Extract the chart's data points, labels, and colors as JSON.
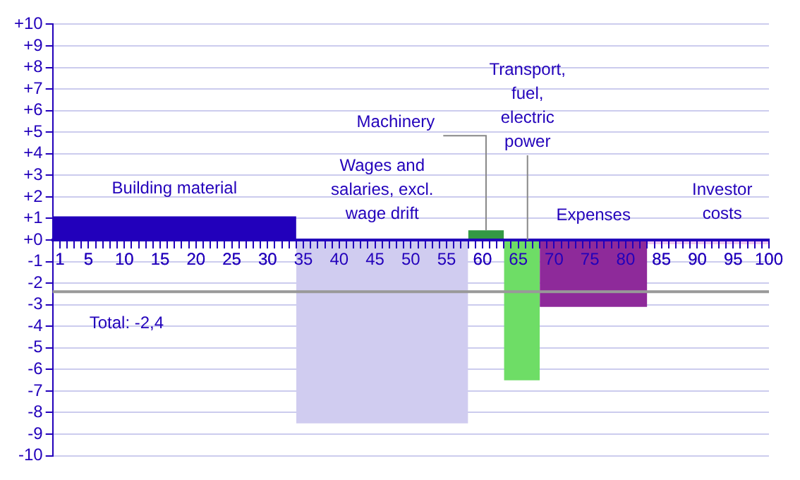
{
  "chart_data": {
    "type": "area",
    "legend": false,
    "grid": "y",
    "series": [
      {
        "name": "Building material",
        "color": "#2200bb",
        "x": [
          0,
          34
        ],
        "values": [
          1.1,
          1.1
        ]
      },
      {
        "name": "Wages and salaries, excl. wage drift",
        "color": "#d0ccf0",
        "x": [
          34,
          58
        ],
        "values": [
          -8.5,
          -8.5
        ]
      },
      {
        "name": "Machinery",
        "color": "#339944",
        "x": [
          58,
          63
        ],
        "values": [
          0.45,
          0.45
        ]
      },
      {
        "name": "Transport, fuel, electric power",
        "color": "#6edd66",
        "x": [
          63,
          68
        ],
        "values": [
          -6.5,
          -6.5
        ]
      },
      {
        "name": "Expenses",
        "color": "#8e2a9a",
        "x": [
          68,
          83
        ],
        "values": [
          -3.1,
          -3.1
        ]
      },
      {
        "name": "Investor costs",
        "color": "#f0c8f0",
        "x": [
          83,
          100
        ],
        "values": [
          -0.2,
          -0.2
        ]
      }
    ],
    "xlim": [
      0,
      100
    ],
    "xticks": [
      1,
      {
        "value": 2,
        "label": null
      },
      {
        "value": 3,
        "label": null
      },
      {
        "value": 4,
        "label": null
      },
      5,
      {
        "value": 6,
        "label": null
      },
      {
        "value": 7,
        "label": null
      },
      {
        "value": 8,
        "label": null
      },
      {
        "value": 9,
        "label": null
      },
      10,
      {
        "value": 11,
        "label": null
      },
      {
        "value": 12,
        "label": null
      },
      {
        "value": 13,
        "label": null
      },
      {
        "value": 14,
        "label": null
      },
      15,
      {
        "value": 16,
        "label": null
      },
      {
        "value": 17,
        "label": null
      },
      {
        "value": 18,
        "label": null
      },
      {
        "value": 19,
        "label": null
      },
      20,
      {
        "value": 21,
        "label": null
      },
      {
        "value": 22,
        "label": null
      },
      {
        "value": 23,
        "label": null
      },
      {
        "value": 24,
        "label": null
      },
      25,
      {
        "value": 26,
        "label": null
      },
      {
        "value": 27,
        "label": null
      },
      {
        "value": 28,
        "label": null
      },
      {
        "value": 29,
        "label": null
      },
      30,
      {
        "value": 31,
        "label": null
      },
      {
        "value": 32,
        "label": null
      },
      {
        "value": 33,
        "label": null
      },
      {
        "value": 34,
        "label": null
      },
      35,
      {
        "value": 36,
        "label": null
      },
      {
        "value": 37,
        "label": null
      },
      {
        "value": 38,
        "label": null
      },
      {
        "value": 39,
        "label": null
      },
      40,
      {
        "value": 41,
        "label": null
      },
      {
        "value": 42,
        "label": null
      },
      {
        "value": 43,
        "label": null
      },
      {
        "value": 44,
        "label": null
      },
      45,
      {
        "value": 46,
        "label": null
      },
      {
        "value": 47,
        "label": null
      },
      {
        "value": 48,
        "label": null
      },
      {
        "value": 49,
        "label": null
      },
      50,
      {
        "value": 51,
        "label": null
      },
      {
        "value": 52,
        "label": null
      },
      {
        "value": 53,
        "label": null
      },
      {
        "value": 54,
        "label": null
      },
      55,
      {
        "value": 56,
        "label": null
      },
      {
        "value": 57,
        "label": null
      },
      {
        "value": 58,
        "label": null
      },
      {
        "value": 59,
        "label": null
      },
      60,
      {
        "value": 61,
        "label": null
      },
      {
        "value": 62,
        "label": null
      },
      {
        "value": 63,
        "label": null
      },
      {
        "value": 64,
        "label": null
      },
      65,
      {
        "value": 66,
        "label": null
      },
      {
        "value": 67,
        "label": null
      },
      {
        "value": 68,
        "label": null
      },
      {
        "value": 69,
        "label": null
      },
      70,
      {
        "value": 71,
        "label": null
      },
      {
        "value": 72,
        "label": null
      },
      {
        "value": 73,
        "label": null
      },
      {
        "value": 74,
        "label": null
      },
      75,
      {
        "value": 76,
        "label": null
      },
      {
        "value": 77,
        "label": null
      },
      {
        "value": 78,
        "label": null
      },
      {
        "value": 79,
        "label": null
      },
      80,
      {
        "value": 81,
        "label": null
      },
      {
        "value": 82,
        "label": null
      },
      {
        "value": 83,
        "label": null
      },
      {
        "value": 84,
        "label": null
      },
      85,
      {
        "value": 86,
        "label": null
      },
      {
        "value": 87,
        "label": null
      },
      {
        "value": 88,
        "label": null
      },
      {
        "value": 89,
        "label": null
      },
      90,
      {
        "value": 91,
        "label": null
      },
      {
        "value": 92,
        "label": null
      },
      {
        "value": 93,
        "label": null
      },
      {
        "value": 94,
        "label": null
      },
      95,
      {
        "value": 96,
        "label": null
      },
      {
        "value": 97,
        "label": null
      },
      {
        "value": 98,
        "label": null
      },
      {
        "value": 99,
        "label": null
      },
      100
    ],
    "ylim": [
      -10,
      10
    ],
    "yticks": [
      -10,
      -9,
      -8,
      -7,
      -6,
      -5,
      -4,
      -3,
      -2,
      -1,
      {
        "value": 0,
        "label": "+0"
      },
      {
        "value": 1,
        "label": "+1"
      },
      {
        "value": 2,
        "label": "+2"
      },
      {
        "value": 3,
        "label": "+3"
      },
      {
        "value": 4,
        "label": "+4"
      },
      {
        "value": 5,
        "label": "+5"
      },
      {
        "value": 6,
        "label": "+6"
      },
      {
        "value": 7,
        "label": "+7"
      },
      {
        "value": 8,
        "label": "+8"
      },
      {
        "value": 9,
        "label": "+9"
      },
      {
        "value": 10,
        "label": "+10"
      }
    ],
    "ref_lines": [
      {
        "axis": "y",
        "value": -2.4,
        "label": "Total: -2,4",
        "color": "#999999"
      }
    ]
  }
}
